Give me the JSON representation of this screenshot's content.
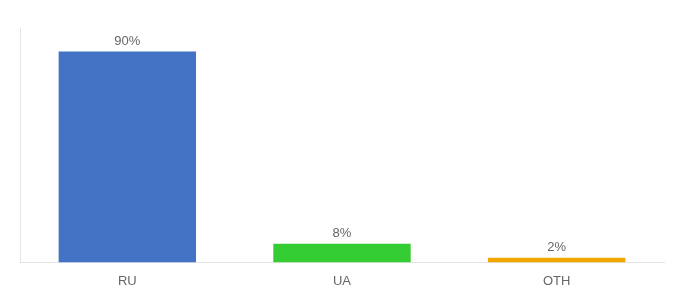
{
  "chart_data": {
    "type": "bar",
    "categories": [
      "RU",
      "UA",
      "OTH"
    ],
    "values": [
      90,
      8,
      2
    ],
    "value_labels": [
      "90%",
      "8%",
      "2%"
    ],
    "colors": [
      "#4472c4",
      "#33cc33",
      "#f0a500"
    ],
    "ylim": [
      0,
      100
    ],
    "grid": false,
    "data_labels": true,
    "tick_labels": "x"
  }
}
